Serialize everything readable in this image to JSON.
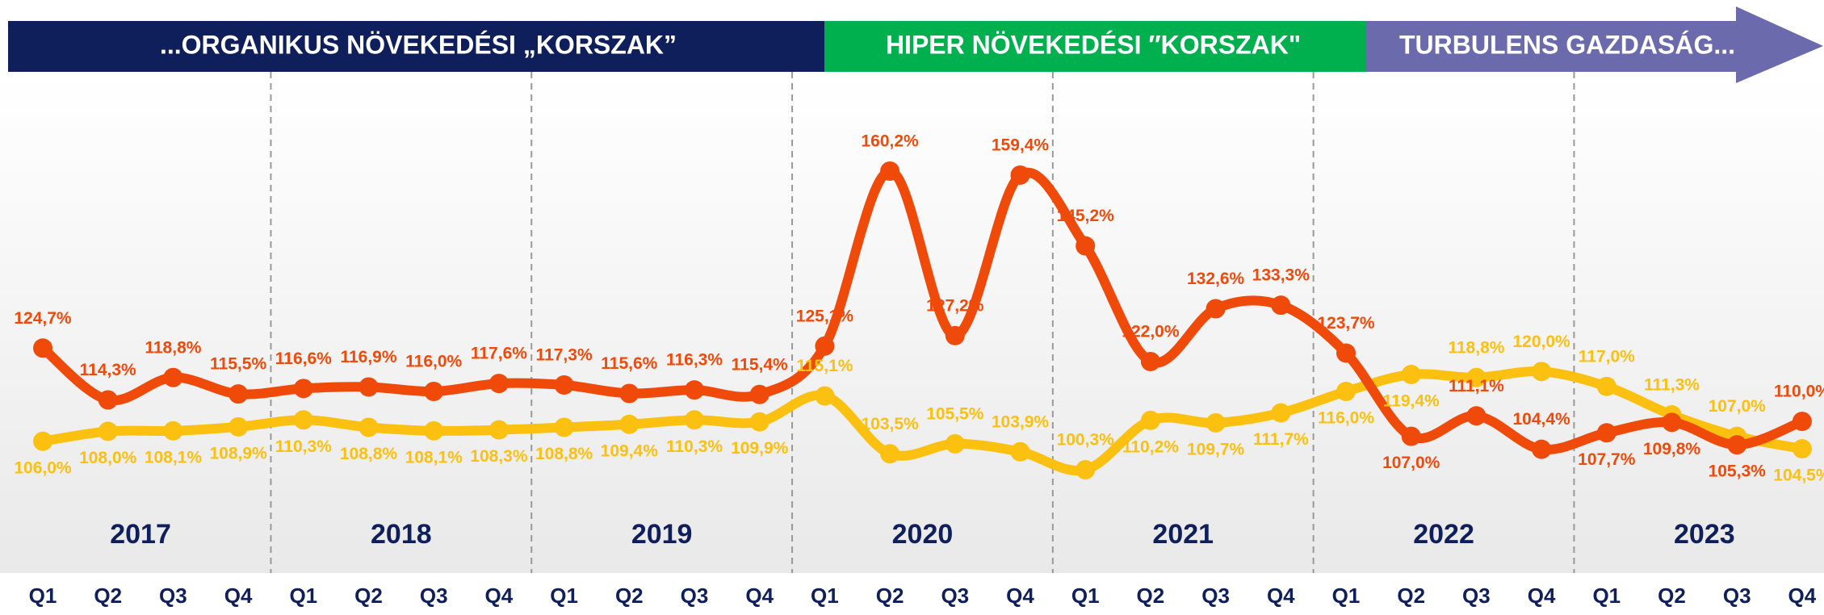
{
  "chart_data": {
    "type": "line",
    "phases": [
      "...ORGANIKUS NÖVEKEDÉSI „KORSZAK”",
      "HIPER NÖVEKEDÉSI ″KORSZAK\"",
      "TURBULENS GAZDASÁG..."
    ],
    "years": [
      "2017",
      "2018",
      "2019",
      "2020",
      "2021",
      "2022",
      "2023"
    ],
    "categories": [
      "Q1",
      "Q2",
      "Q3",
      "Q4",
      "Q1",
      "Q2",
      "Q3",
      "Q4",
      "Q1",
      "Q2",
      "Q3",
      "Q4",
      "Q1",
      "Q2",
      "Q3",
      "Q4",
      "Q1",
      "Q2",
      "Q3",
      "Q4",
      "Q1",
      "Q2",
      "Q3",
      "Q4",
      "Q1",
      "Q2",
      "Q3",
      "Q4"
    ],
    "series": [
      {
        "color": "#f04a0a",
        "values": [
          124.7,
          114.3,
          118.8,
          115.5,
          116.6,
          116.9,
          116.0,
          117.6,
          117.3,
          115.6,
          116.3,
          115.4,
          125.1,
          160.2,
          127.2,
          159.4,
          145.2,
          122.0,
          132.6,
          133.3,
          123.7,
          107.0,
          111.1,
          104.4,
          107.7,
          109.8,
          105.3,
          110.0
        ],
        "value_labels": [
          "124,7%",
          "114,3%",
          "118,8%",
          "115,5%",
          "116,6%",
          "116,9%",
          "116,0%",
          "117,6%",
          "117,3%",
          "115,6%",
          "116,3%",
          "115,4%",
          "125,1%",
          "160,2%",
          "127,2%",
          "159,4%",
          "145,2%",
          "122,0%",
          "132,6%",
          "133,3%",
          "123,7%",
          "107,0%",
          "111,1%",
          "104,4%",
          "107,7%",
          "109,8%",
          "105,3%",
          "110,0%"
        ]
      },
      {
        "color": "#fcc010",
        "values": [
          106.0,
          108.0,
          108.1,
          108.9,
          110.3,
          108.8,
          108.1,
          108.3,
          108.8,
          109.4,
          110.3,
          109.9,
          115.1,
          103.5,
          105.5,
          103.9,
          100.3,
          110.2,
          109.7,
          111.7,
          116.0,
          119.4,
          118.8,
          120.0,
          117.0,
          111.3,
          107.0,
          104.5
        ],
        "value_labels": [
          "106,0%",
          "108,0%",
          "108,1%",
          "108,9%",
          "110,3%",
          "108,8%",
          "108,1%",
          "108,3%",
          "108,8%",
          "109,4%",
          "110,3%",
          "109,9%",
          "115,1%",
          "103,5%",
          "105,5%",
          "103,9%",
          "100,3%",
          "110,2%",
          "109,7%",
          "111,7%",
          "116,0%",
          "119,4%",
          "118,8%",
          "120,0%",
          "117,0%",
          "111,3%",
          "107,0%",
          "104,5%"
        ]
      }
    ]
  }
}
